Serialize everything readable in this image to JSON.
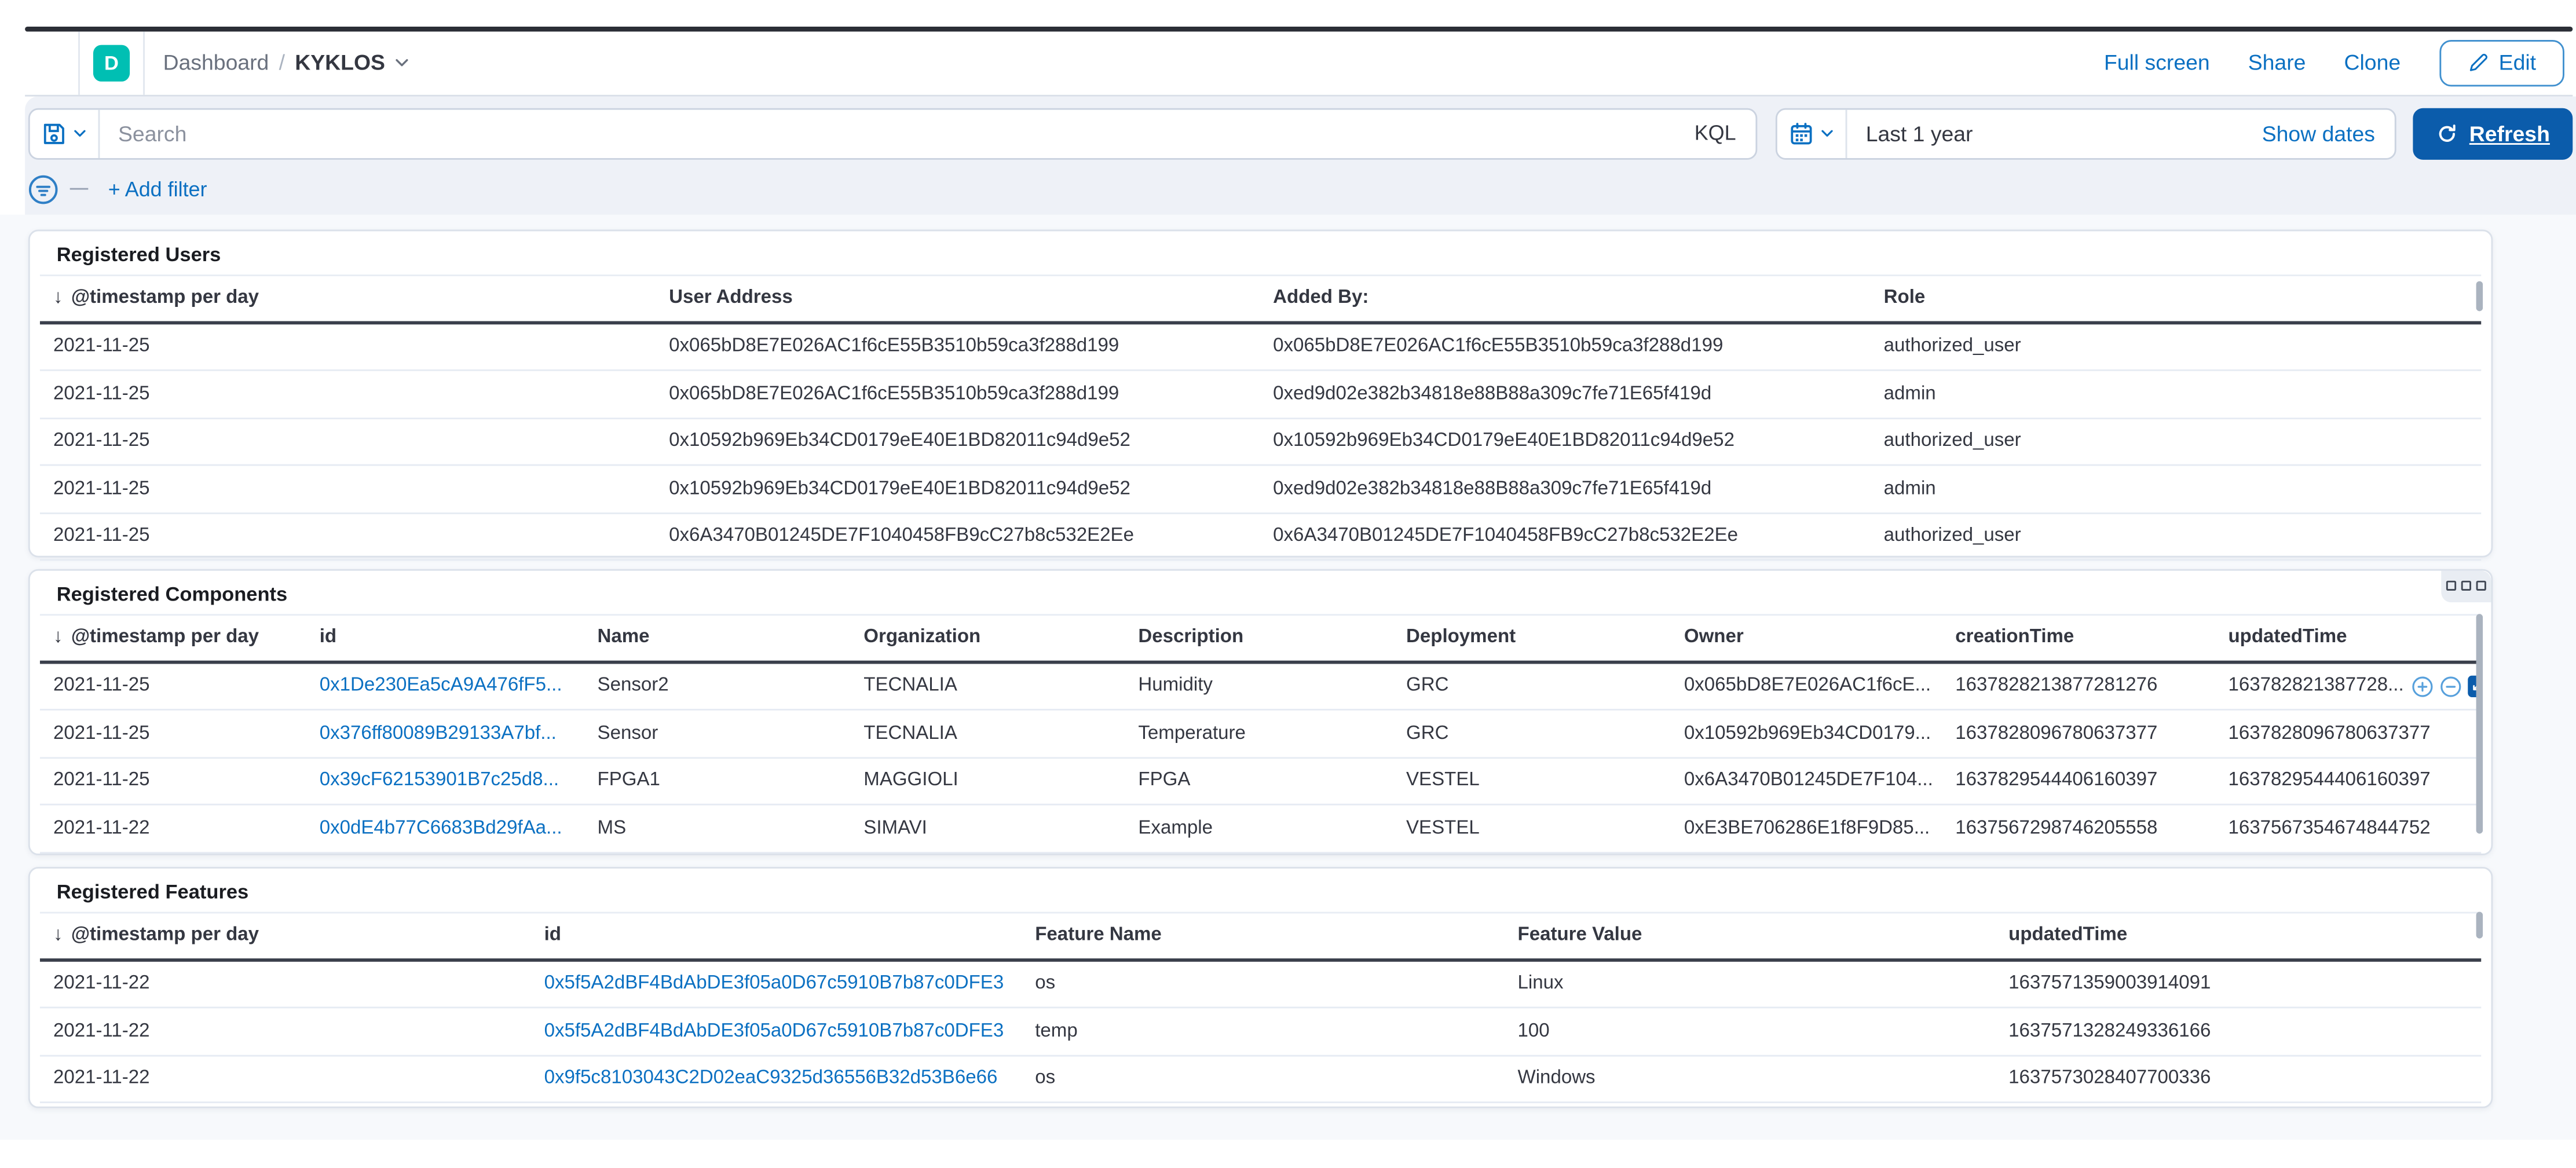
{
  "header": {
    "logo_letter": "D",
    "breadcrumb": {
      "app": "Dashboard",
      "separator": "/",
      "page": "KYKLOS"
    },
    "actions": {
      "full_screen": "Full screen",
      "share": "Share",
      "clone": "Clone",
      "edit": "Edit"
    }
  },
  "query": {
    "search_placeholder": "Search",
    "search_value": "",
    "language_badge": "KQL",
    "time_range": "Last 1 year",
    "show_dates": "Show dates",
    "refresh": "Refresh"
  },
  "filters": {
    "add_filter": "+ Add filter"
  },
  "icons": {
    "sort_arrow": "↓",
    "named": [
      "hamburger-icon",
      "save-icon",
      "chevron-down-icon",
      "calendar-icon",
      "refresh-icon",
      "pencil-icon",
      "filter-circle-icon",
      "magnify-plus-icon",
      "magnify-minus-icon",
      "expand-cell-icon",
      "panel-options-icon",
      "sort-desc-icon"
    ]
  },
  "colors": {
    "link": "#0B70C2",
    "refresh_button_fill": "#0B5CAB",
    "logo_teal": "#00BFB3",
    "table_header_border": "#3A3F4B",
    "panel_border": "#DBE1EA",
    "query_bar_bg": "#EEF1F7",
    "content_bg": "#F7F9FC",
    "text": "#343741",
    "subdued_text": "#69707D"
  },
  "panels": [
    {
      "title": "Registered Users",
      "columns": [
        {
          "label": "@timestamp per day",
          "sorted": true
        },
        {
          "label": "User Address"
        },
        {
          "label": "Added By:"
        },
        {
          "label": "Role"
        }
      ],
      "rows": [
        [
          "2021-11-25",
          "0x065bD8E7E026AC1f6cE55B3510b59ca3f288d199",
          "0x065bD8E7E026AC1f6cE55B3510b59ca3f288d199",
          "authorized_user"
        ],
        [
          "2021-11-25",
          "0x065bD8E7E026AC1f6cE55B3510b59ca3f288d199",
          "0xed9d02e382b34818e88B88a309c7fe71E65f419d",
          "admin"
        ],
        [
          "2021-11-25",
          "0x10592b969Eb34CD0179eE40E1BD82011c94d9e52",
          "0x10592b969Eb34CD0179eE40E1BD82011c94d9e52",
          "authorized_user"
        ],
        [
          "2021-11-25",
          "0x10592b969Eb34CD0179eE40E1BD82011c94d9e52",
          "0xed9d02e382b34818e88B88a309c7fe71E65f419d",
          "admin"
        ],
        [
          "2021-11-25",
          "0x6A3470B01245DE7F1040458FB9cC27b8c532E2Ee",
          "0x6A3470B01245DE7F1040458FB9cC27b8c532E2Ee",
          "authorized_user"
        ]
      ]
    },
    {
      "title": "Registered Components",
      "columns": [
        {
          "label": "@timestamp per day",
          "sorted": true
        },
        {
          "label": "id",
          "link": true
        },
        {
          "label": "Name"
        },
        {
          "label": "Organization"
        },
        {
          "label": "Description"
        },
        {
          "label": "Deployment"
        },
        {
          "label": "Owner"
        },
        {
          "label": "creationTime"
        },
        {
          "label": "updatedTime"
        }
      ],
      "action_row": 0,
      "rows": [
        [
          "2021-11-25",
          "0x1De230Ea5cA9A476fF5...",
          "Sensor2",
          "TECNALIA",
          "Humidity",
          "GRC",
          "0x065bD8E7E026AC1f6cE...",
          "1637828213877281276",
          "163782821387728..."
        ],
        [
          "2021-11-25",
          "0x376ff80089B29133A7bf...",
          "Sensor",
          "TECNALIA",
          "Temperature",
          "GRC",
          "0x10592b969Eb34CD0179...",
          "1637828096780637377",
          "1637828096780637377"
        ],
        [
          "2021-11-25",
          "0x39cF62153901B7c25d8...",
          "FPGA1",
          "MAGGIOLI",
          "FPGA",
          "VESTEL",
          "0x6A3470B01245DE7F104...",
          "1637829544406160397",
          "1637829544406160397"
        ],
        [
          "2021-11-22",
          "0x0dE4b77C6683Bd29fAa...",
          "MS",
          "SIMAVI",
          "Example",
          "VESTEL",
          "0xE3BE706286E1f8F9D85...",
          "1637567298746205558",
          "1637567354674844752"
        ]
      ]
    },
    {
      "title": "Registered Features",
      "columns": [
        {
          "label": "@timestamp per day",
          "sorted": true
        },
        {
          "label": "id",
          "link": true
        },
        {
          "label": "Feature Name"
        },
        {
          "label": "Feature Value"
        },
        {
          "label": "updatedTime"
        }
      ],
      "rows": [
        [
          "2021-11-22",
          "0x5f5A2dBF4BdAbDE3f05a0D67c5910B7b87c0DFE3",
          "os",
          "Linux",
          "1637571359003914091"
        ],
        [
          "2021-11-22",
          "0x5f5A2dBF4BdAbDE3f05a0D67c5910B7b87c0DFE3",
          "temp",
          "100",
          "1637571328249336166"
        ],
        [
          "2021-11-22",
          "0x9f5c8103043C2D02eaC9325d36556B32d53B6e66",
          "os",
          "Windows",
          "1637573028407700336"
        ]
      ]
    }
  ]
}
